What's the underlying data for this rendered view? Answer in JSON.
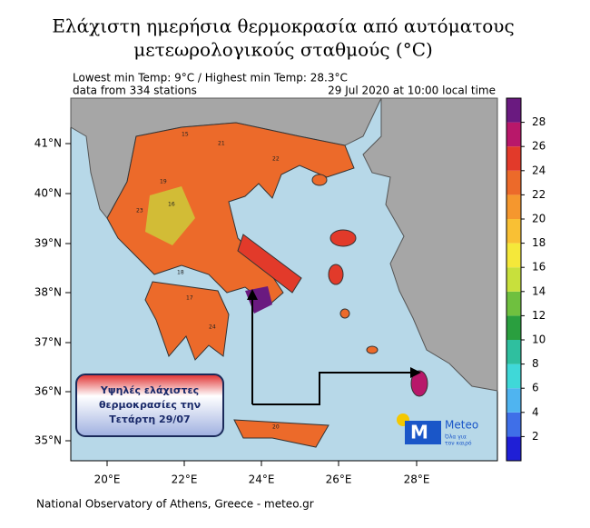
{
  "header": {
    "title_line1": "Ελάχιστη ημερήσια θερμοκρασία από αυτόματους",
    "title_line2": "μετεωρολογικούς σταθμούς (°C)",
    "info_line1": "Lowest min Temp: 9°C / Highest min Temp: 28.3°C",
    "info_line2": "data from 334 stations",
    "date": "29 Jul 2020 at 10:00 local time"
  },
  "map": {
    "lat_labels": [
      "41°N",
      "40°N",
      "39°N",
      "38°N",
      "37°N",
      "36°N",
      "35°N"
    ],
    "lon_labels": [
      "20°E",
      "22°E",
      "24°E",
      "26°E",
      "28°E"
    ],
    "station_labels": [
      "15",
      "21",
      "19",
      "17",
      "23",
      "16",
      "24",
      "22",
      "18",
      "20"
    ]
  },
  "colorbar": {
    "range": [
      0,
      30
    ],
    "ticks": [
      2,
      4,
      6,
      8,
      10,
      12,
      14,
      16,
      18,
      20,
      22,
      24,
      26,
      28
    ],
    "colors": [
      "#1f1fd6",
      "#3f6fe8",
      "#4fb4f0",
      "#3fd8d8",
      "#2fbf9f",
      "#2a9f3f",
      "#6fc03f",
      "#c8e03c",
      "#f5e83a",
      "#f9c034",
      "#f5972e",
      "#ec6a2a",
      "#e23a2a",
      "#b8186a",
      "#6a1a80"
    ]
  },
  "annotation": {
    "line1": "Υψηλές ελάχιστες",
    "line2": "θερμοκρασίες την",
    "line3": "Τετάρτη 29/07"
  },
  "logo": {
    "name": "Meteo",
    "tagline1": "Όλα για",
    "tagline2": "τον καιρό"
  },
  "footer": "National Observatory of Athens, Greece - meteo.gr"
}
